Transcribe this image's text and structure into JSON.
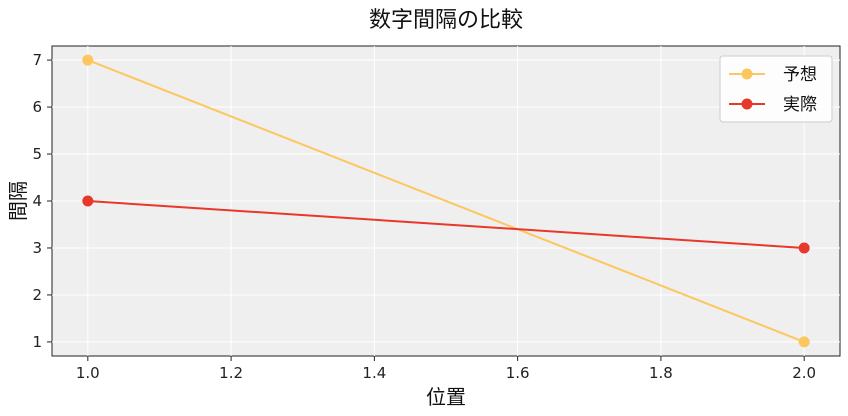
{
  "chart_data": {
    "type": "line",
    "title": "数字間隔の比較",
    "xlabel": "位置",
    "ylabel": "間隔",
    "x": [
      1.0,
      2.0
    ],
    "xlim": [
      0.95,
      2.05
    ],
    "ylim": [
      0.7,
      7.3
    ],
    "xticks": [
      "1.0",
      "1.2",
      "1.4",
      "1.6",
      "1.8",
      "2.0"
    ],
    "yticks": [
      "1",
      "2",
      "3",
      "4",
      "5",
      "6",
      "7"
    ],
    "grid": true,
    "legend_position": "top-right",
    "background_color": "#efefef",
    "series": [
      {
        "name": "予想",
        "values": [
          7,
          1
        ],
        "color": "#fcc75e"
      },
      {
        "name": "実際",
        "values": [
          4,
          3
        ],
        "color": "#e8382b"
      }
    ]
  }
}
